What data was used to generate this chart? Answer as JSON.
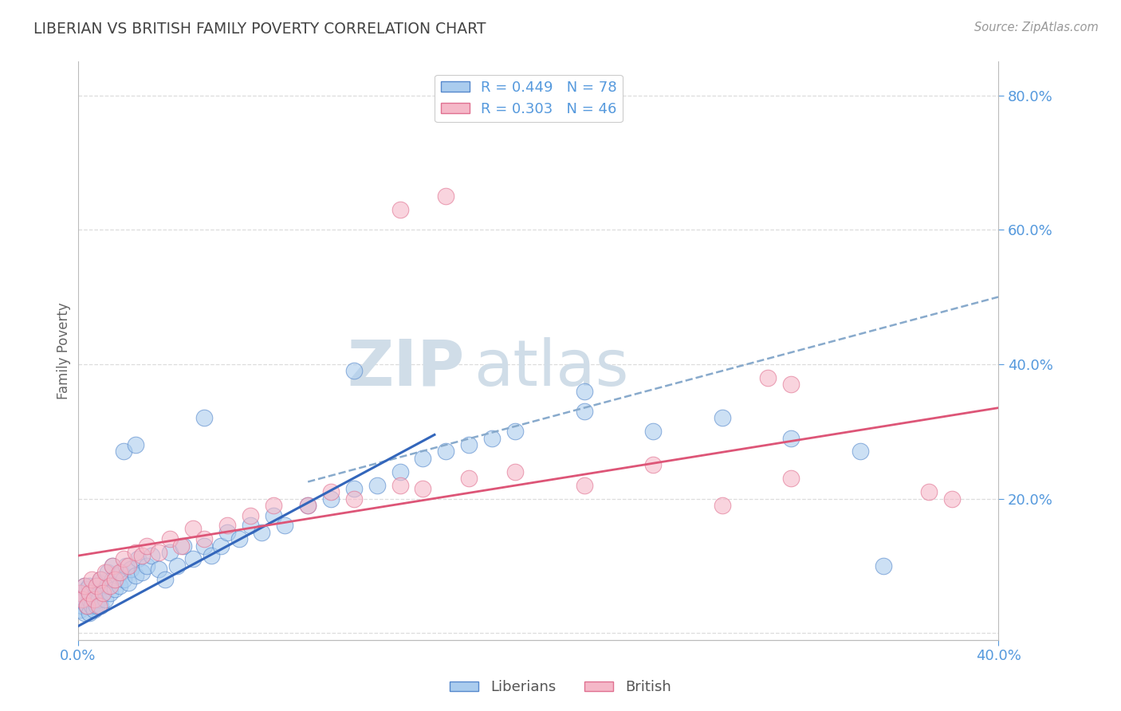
{
  "title": "LIBERIAN VS BRITISH FAMILY POVERTY CORRELATION CHART",
  "source": "Source: ZipAtlas.com",
  "ylabel": "Family Poverty",
  "xlim": [
    0.0,
    0.4
  ],
  "ylim": [
    -0.01,
    0.85
  ],
  "x_ticks": [
    0.0,
    0.4
  ],
  "y_ticks_right": [
    0.2,
    0.4,
    0.6,
    0.8
  ],
  "liberian_R": 0.449,
  "liberian_N": 78,
  "british_R": 0.303,
  "british_N": 46,
  "liberian_color": "#aaccee",
  "british_color": "#f5b8c8",
  "liberian_edge_color": "#5588cc",
  "british_edge_color": "#e07090",
  "liberian_line_color": "#3366bb",
  "british_line_color": "#dd5577",
  "dashed_line_color": "#88aacc",
  "grid_color": "#dddddd",
  "title_color": "#444444",
  "axis_label_color": "#666666",
  "tick_color": "#5599dd",
  "watermark_color": "#d0dde8",
  "background_color": "#ffffff",
  "liberian_trend_x": [
    0.0,
    0.155
  ],
  "liberian_trend_y": [
    0.01,
    0.295
  ],
  "dashed_trend_x": [
    0.1,
    0.4
  ],
  "dashed_trend_y": [
    0.225,
    0.5
  ],
  "british_trend_x": [
    0.0,
    0.4
  ],
  "british_trend_y": [
    0.115,
    0.335
  ],
  "liberian_x": [
    0.001,
    0.001,
    0.002,
    0.002,
    0.003,
    0.003,
    0.003,
    0.004,
    0.004,
    0.005,
    0.005,
    0.005,
    0.006,
    0.006,
    0.007,
    0.007,
    0.008,
    0.008,
    0.009,
    0.009,
    0.01,
    0.01,
    0.011,
    0.012,
    0.013,
    0.013,
    0.014,
    0.015,
    0.015,
    0.016,
    0.017,
    0.018,
    0.019,
    0.02,
    0.021,
    0.022,
    0.023,
    0.025,
    0.026,
    0.028,
    0.03,
    0.032,
    0.035,
    0.038,
    0.04,
    0.043,
    0.046,
    0.05,
    0.055,
    0.058,
    0.062,
    0.065,
    0.07,
    0.075,
    0.08,
    0.085,
    0.09,
    0.1,
    0.11,
    0.12,
    0.13,
    0.14,
    0.15,
    0.16,
    0.17,
    0.18,
    0.19,
    0.22,
    0.25,
    0.28,
    0.31,
    0.34,
    0.02,
    0.025,
    0.055,
    0.12,
    0.22,
    0.35
  ],
  "liberian_y": [
    0.035,
    0.055,
    0.04,
    0.06,
    0.03,
    0.05,
    0.07,
    0.04,
    0.065,
    0.03,
    0.05,
    0.07,
    0.04,
    0.06,
    0.035,
    0.055,
    0.04,
    0.065,
    0.05,
    0.075,
    0.04,
    0.08,
    0.06,
    0.05,
    0.07,
    0.09,
    0.06,
    0.08,
    0.1,
    0.065,
    0.085,
    0.07,
    0.09,
    0.08,
    0.1,
    0.075,
    0.095,
    0.085,
    0.11,
    0.09,
    0.1,
    0.115,
    0.095,
    0.08,
    0.12,
    0.1,
    0.13,
    0.11,
    0.13,
    0.115,
    0.13,
    0.15,
    0.14,
    0.16,
    0.15,
    0.175,
    0.16,
    0.19,
    0.2,
    0.215,
    0.22,
    0.24,
    0.26,
    0.27,
    0.28,
    0.29,
    0.3,
    0.33,
    0.3,
    0.32,
    0.29,
    0.27,
    0.27,
    0.28,
    0.32,
    0.39,
    0.36,
    0.1
  ],
  "british_x": [
    0.001,
    0.002,
    0.003,
    0.004,
    0.005,
    0.006,
    0.007,
    0.008,
    0.009,
    0.01,
    0.011,
    0.012,
    0.014,
    0.015,
    0.016,
    0.018,
    0.02,
    0.022,
    0.025,
    0.028,
    0.03,
    0.035,
    0.04,
    0.045,
    0.05,
    0.055,
    0.065,
    0.075,
    0.085,
    0.1,
    0.11,
    0.12,
    0.14,
    0.15,
    0.17,
    0.19,
    0.22,
    0.25,
    0.28,
    0.31,
    0.14,
    0.16,
    0.3,
    0.31,
    0.37,
    0.38
  ],
  "british_y": [
    0.06,
    0.05,
    0.07,
    0.04,
    0.06,
    0.08,
    0.05,
    0.07,
    0.04,
    0.08,
    0.06,
    0.09,
    0.07,
    0.1,
    0.08,
    0.09,
    0.11,
    0.1,
    0.12,
    0.115,
    0.13,
    0.12,
    0.14,
    0.13,
    0.155,
    0.14,
    0.16,
    0.175,
    0.19,
    0.19,
    0.21,
    0.2,
    0.22,
    0.215,
    0.23,
    0.24,
    0.22,
    0.25,
    0.19,
    0.23,
    0.63,
    0.65,
    0.38,
    0.37,
    0.21,
    0.2
  ]
}
